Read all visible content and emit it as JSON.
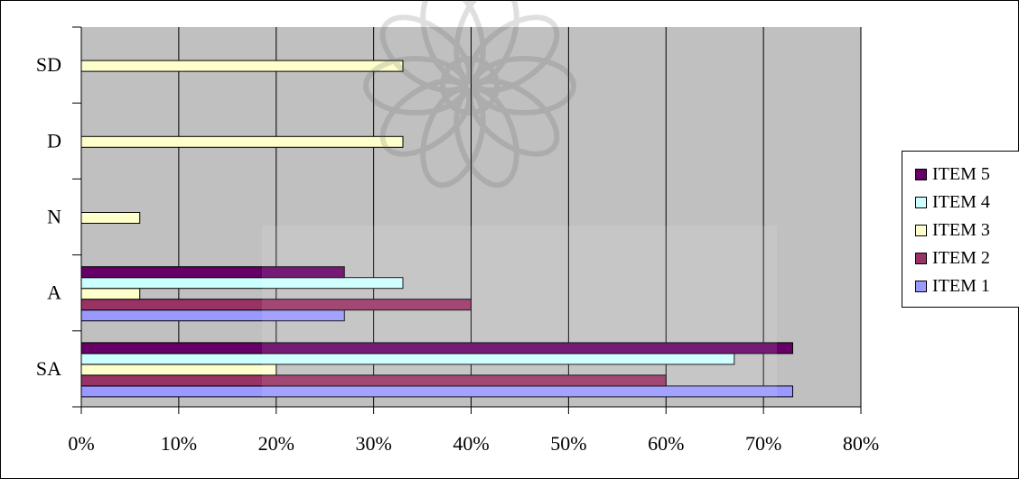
{
  "chart_data": {
    "type": "bar",
    "orientation": "horizontal",
    "categories": [
      "SA",
      "A",
      "N",
      "D",
      "SD"
    ],
    "series": [
      {
        "name": "ITEM 1",
        "color": "#9999ff",
        "values": [
          73,
          27,
          0,
          0,
          0
        ]
      },
      {
        "name": "ITEM 2",
        "color": "#993366",
        "values": [
          60,
          40,
          0,
          0,
          0
        ]
      },
      {
        "name": "ITEM 3",
        "color": "#ffffcc",
        "values": [
          20,
          6,
          6,
          33,
          33
        ]
      },
      {
        "name": "ITEM 4",
        "color": "#ccffff",
        "values": [
          67,
          33,
          0,
          0,
          0
        ]
      },
      {
        "name": "ITEM 5",
        "color": "#660066",
        "values": [
          73,
          27,
          0,
          0,
          0
        ]
      }
    ],
    "xlim": [
      0,
      80
    ],
    "xticks": [
      "0%",
      "10%",
      "20%",
      "30%",
      "40%",
      "50%",
      "60%",
      "70%",
      "80%"
    ],
    "grid": true,
    "plot_background": "#c0c0c0",
    "legend_position": "right",
    "legend_order": [
      "ITEM 5",
      "ITEM 4",
      "ITEM 3",
      "ITEM 2",
      "ITEM 1"
    ]
  }
}
